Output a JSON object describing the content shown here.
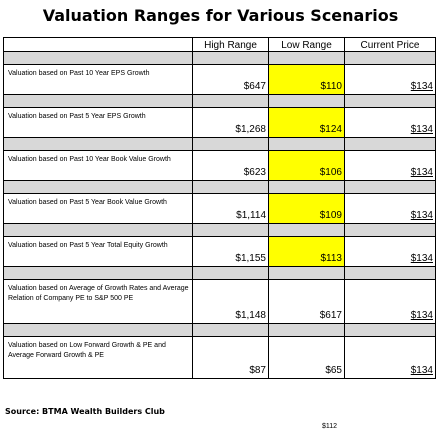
{
  "title": "Valuation Ranges for Various Scenarios",
  "source": "Source: BTMA Wealth Builders Club",
  "chart_data": {
    "type": "table",
    "columns": [
      "",
      "High Range",
      "Low Range",
      "Current Price"
    ],
    "rows": [
      {
        "label": "Valuation based on Past 10 Year EPS Growth",
        "high": "$647",
        "low": "$110",
        "current": "$134",
        "low_highlighted": true
      },
      {
        "label": "Valuation based on Past 5 Year EPS Growth",
        "high": "$1,268",
        "low": "$124",
        "current": "$134",
        "low_highlighted": true
      },
      {
        "label": "Valuation based on Past 10 Year Book Value Growth",
        "high": "$623",
        "low": "$106",
        "current": "$134",
        "low_highlighted": true
      },
      {
        "label": "Valuation based on Past 5 Year Book Value Growth",
        "high": "$1,114",
        "low": "$109",
        "current": "$134",
        "low_highlighted": true
      },
      {
        "label": "Valuation based on Past 5 Year Total Equity Growth",
        "high": "$1,155",
        "low": "$113",
        "current": "$134",
        "low_highlighted": true
      },
      {
        "label": "Valuation based on Average of Growth Rates and Average Relation of Company PE to S&P 500 PE",
        "high": "$1,148",
        "low": "$617",
        "current": "$134",
        "low_highlighted": false
      },
      {
        "label": "Valuation based on Low Forward Growth & PE and Average Forward Growth & PE",
        "high": "$87",
        "low": "$65",
        "current": "$134",
        "low_highlighted": false
      }
    ],
    "average_value": "$112"
  },
  "colors": {
    "highlight": "#ffff00",
    "gap_row": "#d8d8d8"
  }
}
